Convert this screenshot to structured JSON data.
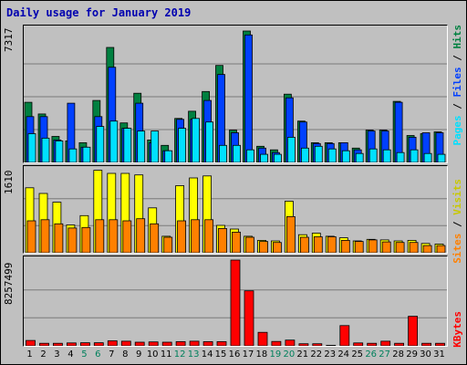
{
  "title": "Daily usage for January 2019",
  "colors": {
    "hits": "#008040",
    "files": "#0040ff",
    "pages": "#00e0ff",
    "visits": "#ffff00",
    "sites": "#ff8000",
    "kbytes": "#ff0000",
    "weekday": "#000000",
    "weekend": "#00805c",
    "grid": "#7a7a7a"
  },
  "legends": {
    "pages": "Pages",
    "files": "Files",
    "hits": "Hits",
    "sites": "Sites",
    "visits": "Visits",
    "kbytes": "KBytes",
    "sep": " / "
  },
  "chart_data": [
    {
      "type": "bar",
      "title": "Daily usage for January 2019",
      "ymax_label": "7317",
      "ylim": [
        0,
        7317
      ],
      "categories": [
        "1",
        "2",
        "3",
        "4",
        "5",
        "6",
        "7",
        "8",
        "9",
        "10",
        "11",
        "12",
        "13",
        "14",
        "15",
        "16",
        "17",
        "18",
        "19",
        "20",
        "21",
        "22",
        "23",
        "24",
        "25",
        "26",
        "27",
        "28",
        "29",
        "30",
        "31"
      ],
      "weekend_days": [
        "5",
        "6",
        "12",
        "13",
        "19",
        "20",
        "26",
        "27"
      ],
      "series": [
        {
          "name": "Hits",
          "values": [
            3350,
            2700,
            1450,
            1200,
            1100,
            3450,
            6400,
            2200,
            3850,
            1250,
            950,
            2450,
            2850,
            3950,
            5400,
            1800,
            7317,
            900,
            700,
            3800,
            2300,
            1100,
            1100,
            1100,
            800,
            1800,
            1800,
            3400,
            1500,
            1600,
            1700
          ]
        },
        {
          "name": "Files",
          "values": [
            2550,
            2550,
            1250,
            3300,
            850,
            2550,
            5300,
            1900,
            3300,
            1100,
            650,
            2400,
            2400,
            3450,
            4900,
            1650,
            7100,
            800,
            550,
            3600,
            2250,
            1050,
            1050,
            1100,
            700,
            1750,
            1750,
            3350,
            1400,
            1650,
            1650
          ]
        },
        {
          "name": "Pages",
          "values": [
            1600,
            1350,
            1200,
            750,
            850,
            2000,
            2300,
            1900,
            1750,
            1750,
            650,
            1900,
            2450,
            2250,
            950,
            950,
            700,
            450,
            450,
            1400,
            800,
            900,
            750,
            650,
            500,
            750,
            700,
            550,
            700,
            500,
            450
          ]
        }
      ]
    },
    {
      "type": "bar",
      "ymax_label": "1610",
      "ylim": [
        0,
        1610
      ],
      "categories": [
        "1",
        "2",
        "3",
        "4",
        "5",
        "6",
        "7",
        "8",
        "9",
        "10",
        "11",
        "12",
        "13",
        "14",
        "15",
        "16",
        "17",
        "18",
        "19",
        "20",
        "21",
        "22",
        "23",
        "24",
        "25",
        "26",
        "27",
        "28",
        "29",
        "30",
        "31"
      ],
      "series": [
        {
          "name": "Visits",
          "values": [
            1260,
            1150,
            980,
            540,
            720,
            1600,
            1540,
            1540,
            1510,
            870,
            320,
            1300,
            1450,
            1490,
            530,
            460,
            320,
            240,
            230,
            1000,
            350,
            380,
            320,
            290,
            230,
            260,
            250,
            230,
            240,
            180,
            170
          ]
        },
        {
          "name": "Sites",
          "values": [
            620,
            640,
            560,
            480,
            490,
            640,
            640,
            620,
            660,
            560,
            300,
            620,
            640,
            640,
            470,
            400,
            300,
            220,
            200,
            700,
            300,
            310,
            310,
            240,
            220,
            250,
            210,
            200,
            200,
            140,
            140
          ]
        }
      ]
    },
    {
      "type": "bar",
      "ymax_label": "8257499",
      "ylim": [
        0,
        8257499
      ],
      "categories": [
        "1",
        "2",
        "3",
        "4",
        "5",
        "6",
        "7",
        "8",
        "9",
        "10",
        "11",
        "12",
        "13",
        "14",
        "15",
        "16",
        "17",
        "18",
        "19",
        "20",
        "21",
        "22",
        "23",
        "24",
        "25",
        "26",
        "27",
        "28",
        "29",
        "30",
        "31"
      ],
      "series": [
        {
          "name": "KBytes",
          "values": [
            520000,
            250000,
            250000,
            280000,
            300000,
            300000,
            480000,
            450000,
            350000,
            380000,
            350000,
            400000,
            450000,
            400000,
            400000,
            8257499,
            5300000,
            1300000,
            420000,
            550000,
            200000,
            200000,
            50000,
            1950000,
            280000,
            250000,
            450000,
            250000,
            2850000,
            250000,
            250000
          ]
        }
      ]
    }
  ]
}
